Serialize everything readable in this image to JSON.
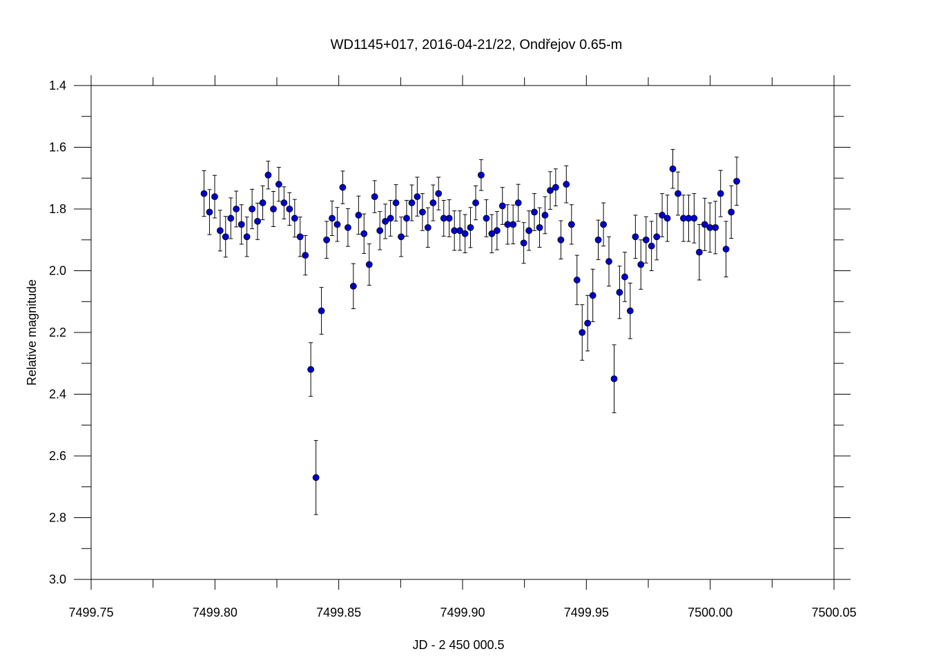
{
  "chart_data": {
    "type": "scatter",
    "title": "WD1145+017, 2016-04-21/22, Ondřejov 0.65-m",
    "xlabel": "JD - 2 450 000.5",
    "ylabel": "Relative magnitude",
    "xlim": [
      7499.75,
      7500.05
    ],
    "ylim": [
      1.4,
      3.0
    ],
    "y_inverted": true,
    "grid": false,
    "marker_color": "#0000cc",
    "x_ticks": [
      7499.75,
      7499.8,
      7499.85,
      7499.9,
      7499.95,
      7500.0,
      7500.05
    ],
    "x_tick_labels": [
      "7499.75",
      "7499.80",
      "7499.85",
      "7499.90",
      "7499.95",
      "7500.00",
      "7500.05"
    ],
    "y_ticks": [
      1.4,
      1.6,
      1.8,
      2.0,
      2.2,
      2.4,
      2.6,
      2.8,
      3.0
    ],
    "y_tick_labels": [
      "1.4",
      "1.6",
      "1.8",
      "2.0",
      "2.2",
      "2.4",
      "2.6",
      "2.8",
      "3.0"
    ],
    "series": [
      {
        "x": [
          7499.7956,
          7499.7978,
          7499.7999,
          7499.8021,
          7499.8043,
          7499.8064,
          7499.8086,
          7499.8107,
          7499.8129,
          7499.815,
          7499.8172,
          7499.8193,
          7499.8215,
          7499.8236,
          7499.8258,
          7499.8279,
          7499.8301,
          7499.8322,
          7499.8344,
          7499.8365,
          7499.8387,
          7499.8408,
          7499.843,
          7499.8451,
          7499.8473,
          7499.8494,
          7499.8516,
          7499.8537,
          7499.8559,
          7499.858,
          7499.8602,
          7499.8623,
          7499.8645,
          7499.8666,
          7499.8688,
          7499.8709,
          7499.8731,
          7499.8752,
          7499.8774,
          7499.8795,
          7499.8817,
          7499.8838,
          7499.886,
          7499.8881,
          7499.8903,
          7499.8924,
          7499.8946,
          7499.8967,
          7499.8989,
          7499.901,
          7499.9032,
          7499.9053,
          7499.9075,
          7499.9096,
          7499.9118,
          7499.9139,
          7499.9161,
          7499.9182,
          7499.9204,
          7499.9225,
          7499.9247,
          7499.9268,
          7499.929,
          7499.9311,
          7499.9333,
          7499.9354,
          7499.9376,
          7499.9397,
          7499.9419,
          7499.944,
          7499.9462,
          7499.9483,
          7499.9505,
          7499.9526,
          7499.9548,
          7499.9569,
          7499.9591,
          7499.9612,
          7499.9634,
          7499.9655,
          7499.9677,
          7499.9698,
          7499.972,
          7499.9741,
          7499.9763,
          7499.9784,
          7499.9806,
          7499.9827,
          7499.9849,
          7499.987,
          7499.9892,
          7499.9913,
          7499.9935,
          7499.9956,
          7499.9978,
          7499.9999,
          7500.0021,
          7500.0042,
          7500.0064,
          7500.0085,
          7500.0107
        ],
        "y": [
          1.75,
          1.81,
          1.76,
          1.87,
          1.89,
          1.83,
          1.8,
          1.85,
          1.89,
          1.8,
          1.84,
          1.78,
          1.69,
          1.8,
          1.72,
          1.78,
          1.8,
          1.83,
          1.89,
          1.95,
          2.32,
          2.67,
          2.13,
          1.9,
          1.83,
          1.85,
          1.73,
          1.86,
          2.05,
          1.82,
          1.88,
          1.98,
          1.76,
          1.87,
          1.84,
          1.83,
          1.78,
          1.89,
          1.83,
          1.78,
          1.76,
          1.81,
          1.86,
          1.78,
          1.75,
          1.83,
          1.83,
          1.87,
          1.87,
          1.88,
          1.86,
          1.78,
          1.69,
          1.83,
          1.88,
          1.87,
          1.79,
          1.85,
          1.85,
          1.78,
          1.91,
          1.87,
          1.81,
          1.86,
          1.82,
          1.74,
          1.73,
          1.9,
          1.72,
          1.85,
          2.03,
          2.2,
          2.17,
          2.08,
          1.9,
          1.85,
          1.97,
          2.35,
          2.07,
          2.02,
          2.13,
          1.89,
          1.98,
          1.9,
          1.92,
          1.89,
          1.82,
          1.83,
          1.67,
          1.75,
          1.83,
          1.83,
          1.83,
          1.94,
          1.85,
          1.86,
          1.86,
          1.75,
          1.93,
          1.81,
          1.71
        ],
        "err": [
          0.074,
          0.073,
          0.069,
          0.066,
          0.066,
          0.066,
          0.058,
          0.064,
          0.064,
          0.064,
          0.059,
          0.055,
          0.045,
          0.057,
          0.055,
          0.052,
          0.053,
          0.061,
          0.064,
          0.064,
          0.087,
          0.12,
          0.076,
          0.06,
          0.056,
          0.055,
          0.053,
          0.061,
          0.073,
          0.062,
          0.064,
          0.067,
          0.052,
          0.062,
          0.056,
          0.058,
          0.059,
          0.064,
          0.058,
          0.058,
          0.063,
          0.06,
          0.064,
          0.058,
          0.053,
          0.058,
          0.06,
          0.064,
          0.064,
          0.062,
          0.065,
          0.055,
          0.05,
          0.06,
          0.062,
          0.062,
          0.06,
          0.064,
          0.063,
          0.06,
          0.066,
          0.064,
          0.06,
          0.064,
          0.06,
          0.061,
          0.06,
          0.062,
          0.06,
          0.064,
          0.08,
          0.09,
          0.09,
          0.085,
          0.064,
          0.07,
          0.08,
          0.11,
          0.085,
          0.08,
          0.09,
          0.07,
          0.08,
          0.075,
          0.08,
          0.075,
          0.07,
          0.075,
          0.063,
          0.07,
          0.075,
          0.075,
          0.08,
          0.09,
          0.085,
          0.08,
          0.085,
          0.075,
          0.09,
          0.085,
          0.078
        ]
      }
    ]
  }
}
